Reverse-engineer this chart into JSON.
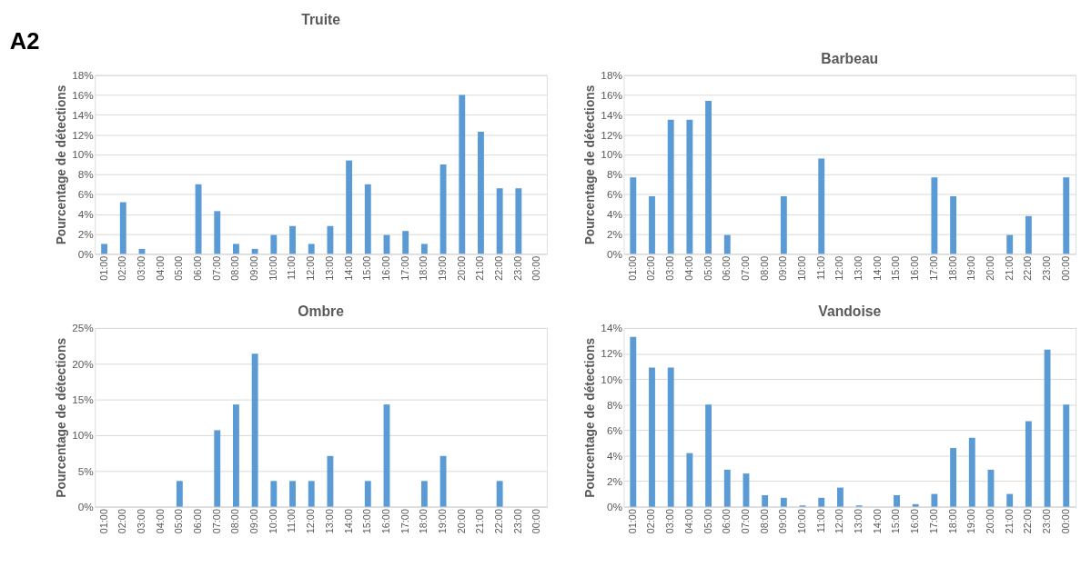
{
  "chart_data": [
    {
      "type": "bar",
      "title": "Truite",
      "ylabel": "Pourcentage de détections",
      "annotations": [
        "A2"
      ],
      "color": "#5b9bd5",
      "grid": "y",
      "categories": [
        "01:00",
        "02:00",
        "03:00",
        "04:00",
        "05:00",
        "06:00",
        "07:00",
        "08:00",
        "09:00",
        "10:00",
        "11:00",
        "12:00",
        "13:00",
        "14:00",
        "15:00",
        "16:00",
        "17:00",
        "18:00",
        "19:00",
        "20:00",
        "21:00",
        "22:00",
        "23:00",
        "00:00"
      ],
      "values": [
        1,
        5.2,
        0.5,
        0,
        0,
        7,
        4.3,
        1,
        0.5,
        1.9,
        2.8,
        1,
        2.8,
        9.4,
        7,
        1.9,
        2.3,
        1,
        9,
        16,
        12.3,
        6.6,
        6.6,
        0
      ],
      "ylim": [
        0,
        18
      ],
      "yticks": [
        {
          "value": 0,
          "label": "0%"
        },
        {
          "value": 2,
          "label": "2%"
        },
        {
          "value": 4,
          "label": "4%"
        },
        {
          "value": 6,
          "label": "6%"
        },
        {
          "value": 8,
          "label": "8%"
        },
        {
          "value": 10,
          "label": "10%"
        },
        {
          "value": 12,
          "label": "12%"
        },
        {
          "value": 14,
          "label": "14%"
        },
        {
          "value": 16,
          "label": "16%"
        },
        {
          "value": 18,
          "label": "18%"
        }
      ]
    },
    {
      "type": "bar",
      "title": "Barbeau",
      "ylabel": "Pourcentage de détections",
      "color": "#5b9bd5",
      "grid": "y",
      "categories": [
        "01:00",
        "02:00",
        "03:00",
        "04:00",
        "05:00",
        "06:00",
        "07:00",
        "08:00",
        "09:00",
        "10:00",
        "11:00",
        "12:00",
        "13:00",
        "14:00",
        "15:00",
        "16:00",
        "17:00",
        "18:00",
        "19:00",
        "20:00",
        "21:00",
        "22:00",
        "23:00",
        "00:00"
      ],
      "values": [
        7.7,
        5.8,
        13.5,
        13.5,
        15.4,
        1.9,
        0,
        0,
        5.8,
        0,
        9.6,
        0,
        0,
        0,
        0,
        0,
        7.7,
        5.8,
        0,
        0,
        1.9,
        3.8,
        0,
        7.7
      ],
      "ylim": [
        0,
        18
      ],
      "yticks": [
        {
          "value": 0,
          "label": "0%"
        },
        {
          "value": 2,
          "label": "2%"
        },
        {
          "value": 4,
          "label": "4%"
        },
        {
          "value": 6,
          "label": "6%"
        },
        {
          "value": 8,
          "label": "8%"
        },
        {
          "value": 10,
          "label": "10%"
        },
        {
          "value": 12,
          "label": "12%"
        },
        {
          "value": 14,
          "label": "14%"
        },
        {
          "value": 16,
          "label": "16%"
        },
        {
          "value": 18,
          "label": "18%"
        }
      ]
    },
    {
      "type": "bar",
      "title": "Ombre",
      "ylabel": "Pourcentage de détections",
      "color": "#5b9bd5",
      "grid": "y",
      "categories": [
        "01:00",
        "02:00",
        "03:00",
        "04:00",
        "05:00",
        "06:00",
        "07:00",
        "08:00",
        "09:00",
        "10:00",
        "11:00",
        "12:00",
        "13:00",
        "14:00",
        "15:00",
        "16:00",
        "17:00",
        "18:00",
        "19:00",
        "20:00",
        "21:00",
        "22:00",
        "23:00",
        "00:00"
      ],
      "values": [
        0,
        0,
        0,
        0,
        3.6,
        0,
        10.7,
        14.3,
        21.4,
        3.6,
        3.6,
        3.6,
        7.1,
        0,
        3.6,
        14.3,
        0,
        3.6,
        7.1,
        0,
        0,
        3.6,
        0,
        0
      ],
      "ylim": [
        0,
        25
      ],
      "yticks": [
        {
          "value": 0,
          "label": "0%"
        },
        {
          "value": 5,
          "label": "5%"
        },
        {
          "value": 10,
          "label": "10%"
        },
        {
          "value": 15,
          "label": "15%"
        },
        {
          "value": 20,
          "label": "20%"
        },
        {
          "value": 25,
          "label": "25%"
        }
      ]
    },
    {
      "type": "bar",
      "title": "Vandoise",
      "ylabel": "Pourcentage de détections",
      "color": "#5b9bd5",
      "grid": "y",
      "categories": [
        "01:00",
        "02:00",
        "03:00",
        "04:00",
        "05:00",
        "06:00",
        "07:00",
        "08:00",
        "09:00",
        "10:00",
        "11:00",
        "12:00",
        "13:00",
        "14:00",
        "15:00",
        "16:00",
        "17:00",
        "18:00",
        "19:00",
        "20:00",
        "21:00",
        "22:00",
        "23:00",
        "00:00"
      ],
      "values": [
        13.3,
        10.9,
        10.9,
        4.2,
        8,
        2.9,
        2.6,
        0.9,
        0.7,
        0.1,
        0.7,
        1.5,
        0.1,
        0,
        0.9,
        0.2,
        1,
        4.6,
        5.4,
        2.9,
        1,
        6.7,
        12.3,
        8
      ],
      "ylim": [
        0,
        14
      ],
      "yticks": [
        {
          "value": 0,
          "label": "0%"
        },
        {
          "value": 2,
          "label": "2%"
        },
        {
          "value": 4,
          "label": "4%"
        },
        {
          "value": 6,
          "label": "6%"
        },
        {
          "value": 8,
          "label": "8%"
        },
        {
          "value": 10,
          "label": "10%"
        },
        {
          "value": 12,
          "label": "12%"
        },
        {
          "value": 14,
          "label": "14%"
        }
      ]
    }
  ]
}
